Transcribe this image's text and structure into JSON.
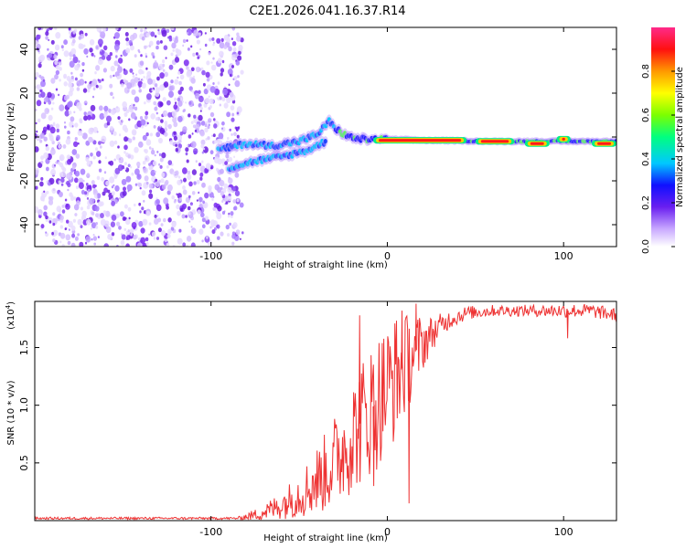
{
  "title": "C2E1.2026.041.16.37.R14",
  "colors": {
    "snr_line": "#ee3333",
    "noise_purple": "#7a2cf0",
    "frame": "#000000"
  },
  "chart_data": [
    {
      "type": "heatmap",
      "name": "spectrogram",
      "xlabel": "Height of straight line (km)",
      "ylabel": "Frequency (Hz)",
      "xlim": [
        -200,
        130
      ],
      "ylim": [
        -50,
        50
      ],
      "xticks": [
        -100,
        0,
        100
      ],
      "yticks": [
        -40,
        -20,
        0,
        20,
        40
      ],
      "noise_region_x": [
        -200,
        -82
      ],
      "signal_tracks": [
        {
          "name": "upper branch",
          "x": [
            -96,
            -80,
            -65,
            -50,
            -40,
            -33,
            -28,
            -22,
            -15,
            -5,
            0,
            20,
            60,
            100,
            130
          ],
          "y": [
            -6,
            -3,
            -4,
            -2,
            1,
            7,
            3,
            0,
            -1,
            -1,
            -1,
            -1.5,
            -2,
            -2,
            -2
          ]
        },
        {
          "name": "lower branch",
          "x": [
            -90,
            -75,
            -60,
            -45,
            -35
          ],
          "y": [
            -14,
            -11,
            -9,
            -6,
            -2
          ]
        }
      ],
      "strong_segments": [
        {
          "x": [
            -8,
            45
          ],
          "y": -1.5
        },
        {
          "x": [
            50,
            72
          ],
          "y": -2
        },
        {
          "x": [
            78,
            92
          ],
          "y": -3
        },
        {
          "x": [
            96,
            104
          ],
          "y": -1
        },
        {
          "x": [
            116,
            130
          ],
          "y": -3
        }
      ]
    },
    {
      "type": "colorbar",
      "label": "Normalized spectral amplitude",
      "ticks": [
        "0.0",
        "0.2",
        "0.4",
        "0.6",
        "0.8"
      ],
      "range": [
        0,
        1
      ]
    },
    {
      "type": "line",
      "name": "snr",
      "xlabel": "Height of straight line (km)",
      "ylabel": "SNR (10 * v/v)",
      "scale_note_base": "(x10",
      "scale_note_exp": "4",
      "scale_note_close": ")",
      "xlim": [
        -200,
        130
      ],
      "ylim": [
        0,
        1.9
      ],
      "xticks": [
        -100,
        0,
        100
      ],
      "yticks": [
        "0.5",
        "1.0",
        "1.5"
      ],
      "ytick_values": [
        0.5,
        1.0,
        1.5
      ],
      "envelope": {
        "x": [
          -200,
          -85,
          -75,
          -65,
          -55,
          -45,
          -35,
          -25,
          -15,
          -5,
          5,
          15,
          25,
          35,
          45,
          60,
          80,
          100,
          115,
          130
        ],
        "mean": [
          0.02,
          0.02,
          0.05,
          0.1,
          0.18,
          0.28,
          0.42,
          0.62,
          0.85,
          1.05,
          1.25,
          1.45,
          1.62,
          1.74,
          1.8,
          1.82,
          1.82,
          1.82,
          1.82,
          1.78
        ],
        "spread": [
          0.01,
          0.01,
          0.05,
          0.1,
          0.16,
          0.25,
          0.35,
          0.45,
          0.55,
          0.6,
          0.55,
          0.35,
          0.15,
          0.08,
          0.06,
          0.05,
          0.05,
          0.06,
          0.06,
          0.06
        ]
      },
      "spikes": [
        {
          "x": -16,
          "y": 1.78
        },
        {
          "x": 8,
          "y": 1.82
        },
        {
          "x": 16,
          "y": 1.88
        },
        {
          "x": 12,
          "y": 0.15
        },
        {
          "x": -8,
          "y": 0.3
        },
        {
          "x": 102,
          "y": 1.58
        }
      ]
    }
  ]
}
